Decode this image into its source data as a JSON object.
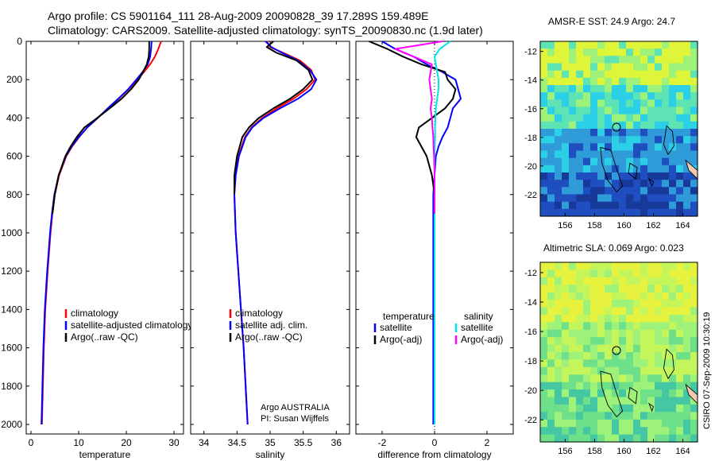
{
  "header": {
    "line1": "Argo profile: CS 5901164_111 28-Aug-2009 20090828_39 17.289S 159.489E",
    "line2": "Climatology: CARS2009. Satellite-adjusted climatology: synTS_20090830.nc (1.9d later)"
  },
  "colors": {
    "climatology": "#ff0000",
    "satellite": "#0000ff",
    "argo": "#000000",
    "sal_satellite": "#00e5ee",
    "sal_argo": "#ff00ff"
  },
  "maps": [
    {
      "title": "AMSR-E SST: 24.9 Argo: 24.7",
      "lon_ticks": [
        "156",
        "158",
        "160",
        "162",
        "164"
      ],
      "lat_ticks": [
        "-12",
        "-14",
        "-16",
        "-18",
        "-20",
        "-22"
      ],
      "colormap": [
        "#2bd0e6",
        "#5ee3b5",
        "#9ef27a",
        "#dff53a",
        "#2f9bd8",
        "#1f4ec0",
        "#173a9a"
      ],
      "argo_position": {
        "lon": 159.489,
        "lat": -17.289
      }
    },
    {
      "title": "Altimetric SLA: 0.069 Argo: 0.023",
      "lon_ticks": [
        "156",
        "158",
        "160",
        "162",
        "164"
      ],
      "lat_ticks": [
        "-12",
        "-14",
        "-16",
        "-18",
        "-20",
        "-22"
      ],
      "colormap": [
        "#9ef27a",
        "#c4f55a",
        "#e6f23e",
        "#6fe08a",
        "#45c7a4"
      ],
      "argo_position": {
        "lon": 159.489,
        "lat": -17.289
      }
    }
  ],
  "timestamp": "CSIRO 07-Sep-2009 10:30:19",
  "chart_data": [
    {
      "type": "line",
      "xlabel": "temperature",
      "ylabel": "",
      "xlim": [
        -1,
        32
      ],
      "ylim": [
        0,
        2050
      ],
      "y_reversed": true,
      "x_ticks": [
        "0",
        "10",
        "20",
        "30"
      ],
      "y_ticks": [
        "0",
        "200",
        "400",
        "600",
        "800",
        "1000",
        "1200",
        "1400",
        "1600",
        "1800",
        "2000"
      ],
      "legend": [
        "climatology",
        "satellite-adjusted climatology",
        "Argo(..raw -QC)"
      ],
      "legend_placement": "middle-right",
      "depth": [
        0,
        40,
        80,
        120,
        160,
        200,
        250,
        300,
        350,
        400,
        450,
        500,
        550,
        600,
        700,
        800,
        900,
        1000,
        1200,
        1400,
        1600,
        1800,
        2000
      ],
      "series": [
        {
          "name": "climatology",
          "color_key": "climatology",
          "values": [
            27.3,
            26.7,
            26.0,
            25.0,
            23.7,
            22.3,
            20.5,
            18.4,
            16.2,
            14.0,
            11.8,
            10.1,
            8.6,
            7.4,
            5.9,
            5.0,
            4.5,
            4.1,
            3.5,
            3.0,
            2.7,
            2.5,
            2.3
          ]
        },
        {
          "name": "satellite-adjusted climatology",
          "color_key": "satellite",
          "values": [
            25.3,
            25.2,
            25.0,
            24.5,
            23.4,
            22.1,
            20.4,
            18.3,
            16.1,
            14.0,
            11.8,
            10.0,
            8.5,
            7.3,
            5.8,
            4.9,
            4.4,
            4.0,
            3.4,
            2.9,
            2.6,
            2.4,
            2.2
          ]
        },
        {
          "name": "Argo(..raw -QC)",
          "color_key": "argo",
          "values": [
            24.8,
            24.8,
            24.7,
            24.3,
            23.5,
            22.6,
            21.0,
            19.0,
            16.5,
            13.9,
            11.2,
            9.6,
            8.3,
            7.2,
            5.8,
            5.0,
            4.5,
            null,
            null,
            null,
            null,
            null,
            null
          ]
        }
      ]
    },
    {
      "type": "line",
      "xlabel": "salinity",
      "ylabel": "",
      "xlim": [
        33.8,
        36.2
      ],
      "ylim": [
        0,
        2050
      ],
      "y_reversed": true,
      "x_ticks": [
        "34",
        "34.5",
        "35",
        "35.5",
        "36"
      ],
      "legend": [
        "climatology",
        "satellite adj. clim.",
        "Argo(..raw -QC)"
      ],
      "legend_placement": "middle-right",
      "annotation": [
        "Argo AUSTRALIA",
        "PI: Susan Wijffels"
      ],
      "depth": [
        0,
        30,
        60,
        100,
        150,
        200,
        250,
        300,
        350,
        400,
        450,
        500,
        600,
        700,
        800,
        1000,
        1200,
        1400,
        1600,
        1800,
        2000
      ],
      "series": [
        {
          "name": "climatology",
          "color_key": "climatology",
          "values": [
            34.95,
            35.0,
            35.2,
            35.45,
            35.62,
            35.68,
            35.55,
            35.35,
            35.1,
            34.88,
            34.72,
            34.62,
            34.52,
            34.47,
            34.46,
            34.48,
            34.52,
            34.56,
            34.6,
            34.63,
            34.66
          ]
        },
        {
          "name": "satellite adj. clim.",
          "color_key": "satellite",
          "values": [
            34.93,
            35.02,
            35.18,
            35.42,
            35.6,
            35.7,
            35.62,
            35.42,
            35.15,
            34.9,
            34.73,
            34.63,
            34.53,
            34.48,
            34.46,
            34.48,
            34.52,
            34.56,
            34.6,
            34.63,
            34.66
          ]
        },
        {
          "name": "Argo(..raw -QC)",
          "color_key": "argo",
          "values": [
            35.05,
            34.95,
            35.1,
            35.4,
            35.58,
            35.64,
            35.5,
            35.3,
            35.05,
            34.83,
            34.68,
            34.58,
            34.5,
            34.46,
            34.46,
            null,
            null,
            null,
            null,
            null,
            null
          ]
        }
      ]
    },
    {
      "type": "line",
      "xlabel": "difference from climatology",
      "ylabel": "",
      "xlim": [
        -3,
        3
      ],
      "ylim": [
        0,
        2050
      ],
      "y_reversed": true,
      "x_ticks": [
        "-2",
        "0",
        "2"
      ],
      "legend_groups": [
        {
          "heading": "temperature",
          "entries": [
            "satellite",
            "Argo(-adj)"
          ]
        },
        {
          "heading": "salinity",
          "entries": [
            "satellite",
            "Argo(-adj)"
          ]
        }
      ],
      "legend_placement": "middle",
      "depth": [
        0,
        40,
        80,
        120,
        160,
        200,
        250,
        300,
        350,
        400,
        450,
        500,
        550,
        600,
        700,
        800,
        900,
        1000,
        1200,
        1400,
        1600,
        1800,
        2000
      ],
      "series": [
        {
          "name": "temperature satellite",
          "color_key": "satellite",
          "values": [
            -2.0,
            -1.5,
            -0.8,
            -0.3,
            0.3,
            0.8,
            0.9,
            1.0,
            0.7,
            0.6,
            0.5,
            0.3,
            0.15,
            0.05,
            0.0,
            -0.05,
            -0.05,
            -0.05,
            -0.05,
            -0.05,
            -0.05,
            -0.05,
            -0.05
          ]
        },
        {
          "name": "temperature Argo(-adj)",
          "color_key": "argo",
          "values": [
            -2.5,
            -1.8,
            -1.2,
            -0.5,
            0.4,
            0.5,
            0.8,
            0.7,
            0.4,
            -0.1,
            -0.6,
            -0.7,
            -0.5,
            -0.3,
            -0.1,
            0.0,
            0.0,
            null,
            null,
            null,
            null,
            null,
            null
          ]
        },
        {
          "name": "salinity satellite",
          "color_key": "sal_satellite",
          "values": [
            0.6,
            0.2,
            0.0,
            0.05,
            0.1,
            0.15,
            0.15,
            0.1,
            0.05,
            0.03,
            0.02,
            0.02,
            0.01,
            0.0,
            0.0,
            0.0,
            0.0,
            0.0,
            0.0,
            0.0,
            0.0,
            0.0,
            0.0
          ]
        },
        {
          "name": "salinity Argo(-adj)",
          "color_key": "sal_argo",
          "values": [
            0.3,
            -1.5,
            -0.8,
            -0.1,
            -0.15,
            -0.2,
            -0.15,
            -0.1,
            -0.15,
            -0.1,
            -0.08,
            -0.05,
            -0.04,
            -0.02,
            0.0,
            0.0,
            0.0,
            null,
            null,
            null,
            null,
            null,
            null
          ]
        }
      ]
    }
  ]
}
